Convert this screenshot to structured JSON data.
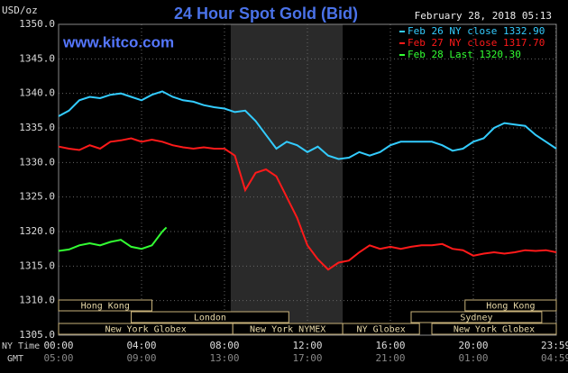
{
  "chart_data": {
    "type": "line",
    "title": "24 Hour Spot Gold (Bid)",
    "unit_label": "USD/oz",
    "timestamp": "February 28, 2018 05:13",
    "watermark": "www.kitco.com",
    "x_row_labels": [
      "NY Time",
      "GMT"
    ],
    "xlim": [
      0,
      24
    ],
    "xticks": [
      {
        "value": 0,
        "label": "00:00"
      },
      {
        "value": 4,
        "label": "04:00"
      },
      {
        "value": 8,
        "label": "08:00"
      },
      {
        "value": 12,
        "label": "12:00"
      },
      {
        "value": 16,
        "label": "16:00"
      },
      {
        "value": 20,
        "label": "20:00"
      },
      {
        "value": 23.98,
        "label": "23:59"
      }
    ],
    "gmt_labels": [
      "05:00",
      "09:00",
      "13:00",
      "17:00",
      "21:00",
      "01:00",
      "04:59"
    ],
    "ylim": [
      1305,
      1350
    ],
    "yticks": [
      {
        "value": 1305,
        "label": "1305.0"
      },
      {
        "value": 1310,
        "label": "1310.0"
      },
      {
        "value": 1315,
        "label": "1315.0"
      },
      {
        "value": 1320,
        "label": "1320.0"
      },
      {
        "value": 1325,
        "label": "1325.0"
      },
      {
        "value": 1330,
        "label": "1330.0"
      },
      {
        "value": 1335,
        "label": "1335.0"
      },
      {
        "value": 1340,
        "label": "1340.0"
      },
      {
        "value": 1345,
        "label": "1345.0"
      },
      {
        "value": 1350,
        "label": "1350.0"
      }
    ],
    "grid": true,
    "highlight_x": [
      8.3,
      13.7
    ],
    "sessions": [
      {
        "label": "Hong Kong",
        "start": 0,
        "end": 4.5,
        "row": 0
      },
      {
        "label": "Hong Kong",
        "start": 19.6,
        "end": 24,
        "row": 0
      },
      {
        "label": "London",
        "start": 3.5,
        "end": 11.1,
        "row": 1
      },
      {
        "label": "Sydney",
        "start": 17,
        "end": 23.3,
        "row": 1
      },
      {
        "label": "New York Globex",
        "start": 0,
        "end": 8.4,
        "row": 2
      },
      {
        "label": "New York NYMEX",
        "start": 8.4,
        "end": 13.7,
        "row": 2
      },
      {
        "label": "NY Globex",
        "start": 13.7,
        "end": 17.4,
        "row": 2
      },
      {
        "label": "New York Globex",
        "start": 18,
        "end": 24,
        "row": 2
      }
    ],
    "series": [
      {
        "name": "Feb 26 NY close 1332.90",
        "color": "#33ccff",
        "x": [
          0,
          0.5,
          1,
          1.5,
          2,
          2.5,
          3,
          3.5,
          4,
          4.5,
          5,
          5.5,
          6,
          6.5,
          7,
          7.5,
          8,
          8.5,
          9,
          9.5,
          10,
          10.5,
          11,
          11.5,
          12,
          12.5,
          13,
          13.5,
          14,
          14.5,
          15,
          15.5,
          16,
          16.5,
          17,
          17.5,
          18,
          18.5,
          19,
          19.5,
          20,
          20.5,
          21,
          21.5,
          22,
          22.5,
          23,
          23.5,
          24
        ],
        "values": [
          1336.7,
          1337.5,
          1339,
          1339.5,
          1339.3,
          1339.8,
          1340,
          1339.5,
          1339,
          1339.8,
          1340.3,
          1339.5,
          1339,
          1338.8,
          1338.3,
          1338,
          1337.8,
          1337.3,
          1337.5,
          1336,
          1334,
          1332,
          1333,
          1332.5,
          1331.5,
          1332.3,
          1331,
          1330.5,
          1330.7,
          1331.5,
          1331,
          1331.5,
          1332.5,
          1333,
          1333,
          1333,
          1333,
          1332.5,
          1331.7,
          1332,
          1333,
          1333.5,
          1335,
          1335.7,
          1335.5,
          1335.3,
          1334,
          1333,
          1332
        ]
      },
      {
        "name": "Feb 27 NY close 1317.70",
        "color": "#ff1a1a",
        "x": [
          0,
          0.5,
          1,
          1.5,
          2,
          2.5,
          3,
          3.5,
          4,
          4.5,
          5,
          5.5,
          6,
          6.5,
          7,
          7.5,
          8,
          8.5,
          9,
          9.5,
          10,
          10.5,
          11,
          11.5,
          12,
          12.5,
          13,
          13.5,
          14,
          14.5,
          15,
          15.5,
          16,
          16.5,
          17,
          17.5,
          18,
          18.5,
          19,
          19.5,
          20,
          20.5,
          21,
          21.5,
          22,
          22.5,
          23,
          23.5,
          24
        ],
        "values": [
          1332.3,
          1332,
          1331.8,
          1332.5,
          1332,
          1333,
          1333.2,
          1333.5,
          1333,
          1333.3,
          1333,
          1332.5,
          1332.2,
          1332,
          1332.2,
          1332,
          1332,
          1331,
          1326,
          1328.5,
          1329,
          1328,
          1325,
          1322,
          1318,
          1316,
          1314.5,
          1315.5,
          1315.8,
          1317,
          1318,
          1317.5,
          1317.8,
          1317.5,
          1317.8,
          1318,
          1318,
          1318.2,
          1317.5,
          1317.3,
          1316.5,
          1316.8,
          1317,
          1316.8,
          1317,
          1317.3,
          1317.2,
          1317.3,
          1317
        ]
      },
      {
        "name": "Feb 28 Last 1320.30",
        "color": "#33ff33",
        "x": [
          0,
          0.5,
          1,
          1.5,
          2,
          2.5,
          3,
          3.5,
          4,
          4.5,
          5,
          5.2
        ],
        "values": [
          1317.2,
          1317.4,
          1318,
          1318.3,
          1318,
          1318.5,
          1318.8,
          1317.8,
          1317.5,
          1318,
          1320,
          1320.6
        ]
      }
    ]
  }
}
